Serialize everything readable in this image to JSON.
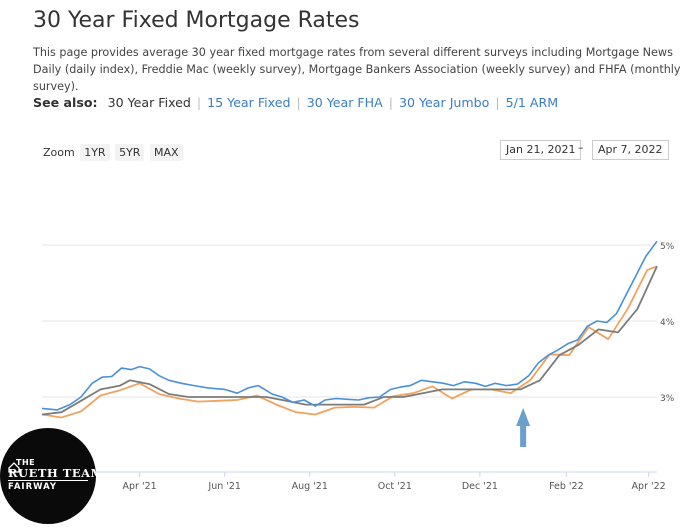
{
  "page": {
    "title": "30 Year Fixed Mortgage Rates",
    "description": "This page provides average 30 year fixed mortgage rates from several different surveys including Mortgage News Daily (daily index), Freddie Mac (weekly survey), Mortgage Bankers Association (weekly survey) and FHFA (monthly survey).",
    "see_also": {
      "label": "See also:",
      "current": "30 Year Fixed",
      "links": [
        "15 Year Fixed",
        "30 Year FHA",
        "30 Year Jumbo",
        "5/1 ARM"
      ]
    }
  },
  "zoom": {
    "label": "Zoom",
    "options": [
      "1YR",
      "5YR",
      "MAX"
    ],
    "from": "Jan 21, 2021",
    "to": "Apr 7, 2022",
    "dash": "–"
  },
  "logo": {
    "line1": "THE",
    "line2": "RUETH TEAM",
    "line3": "FAIRWAY"
  },
  "colors": {
    "mnd": "#4a90d9",
    "gray": "#7b7b7b",
    "orange": "#f0a35e",
    "grid": "#e6e6e6",
    "arrow": "#6a9fd0"
  },
  "chart_data": {
    "type": "line",
    "x_axis": {
      "type": "date",
      "start": "2021-01-21",
      "end": "2022-04-07",
      "tick_labels": [
        "Apr '21",
        "Jun '21",
        "Aug '21",
        "Oct '21",
        "Dec '21",
        "Feb '22",
        "Apr '22"
      ],
      "tick_dates": [
        "2021-04-01",
        "2021-06-01",
        "2021-08-01",
        "2021-10-01",
        "2021-12-01",
        "2022-02-01",
        "2022-04-01"
      ]
    },
    "y_axis": {
      "range": [
        2,
        5.05
      ],
      "tick_values": [
        3,
        4,
        5
      ],
      "tick_labels": [
        "3%",
        "4%",
        "5%"
      ],
      "position": "right"
    },
    "grid": true,
    "annotation": {
      "type": "arrow",
      "date": "2022-01-01",
      "direction": "up"
    },
    "series": [
      {
        "color_key": "mnd",
        "points": [
          [
            "2021-01-21",
            2.85
          ],
          [
            "2021-02-01",
            2.83
          ],
          [
            "2021-02-10",
            2.9
          ],
          [
            "2021-02-18",
            3.0
          ],
          [
            "2021-02-26",
            3.18
          ],
          [
            "2021-03-05",
            3.26
          ],
          [
            "2021-03-12",
            3.27
          ],
          [
            "2021-03-19",
            3.38
          ],
          [
            "2021-03-26",
            3.36
          ],
          [
            "2021-04-01",
            3.4
          ],
          [
            "2021-04-08",
            3.37
          ],
          [
            "2021-04-15",
            3.28
          ],
          [
            "2021-04-22",
            3.22
          ],
          [
            "2021-05-01",
            3.18
          ],
          [
            "2021-05-10",
            3.15
          ],
          [
            "2021-05-20",
            3.12
          ],
          [
            "2021-06-01",
            3.1
          ],
          [
            "2021-06-10",
            3.05
          ],
          [
            "2021-06-18",
            3.12
          ],
          [
            "2021-06-25",
            3.15
          ],
          [
            "2021-07-05",
            3.04
          ],
          [
            "2021-07-12",
            3.0
          ],
          [
            "2021-07-20",
            2.93
          ],
          [
            "2021-07-28",
            2.96
          ],
          [
            "2021-08-05",
            2.88
          ],
          [
            "2021-08-12",
            2.96
          ],
          [
            "2021-08-20",
            2.98
          ],
          [
            "2021-08-28",
            2.97
          ],
          [
            "2021-09-05",
            2.96
          ],
          [
            "2021-09-12",
            2.99
          ],
          [
            "2021-09-20",
            3.0
          ],
          [
            "2021-09-28",
            3.1
          ],
          [
            "2021-10-05",
            3.13
          ],
          [
            "2021-10-12",
            3.15
          ],
          [
            "2021-10-20",
            3.22
          ],
          [
            "2021-10-28",
            3.2
          ],
          [
            "2021-11-05",
            3.18
          ],
          [
            "2021-11-12",
            3.15
          ],
          [
            "2021-11-20",
            3.2
          ],
          [
            "2021-11-28",
            3.18
          ],
          [
            "2021-12-05",
            3.14
          ],
          [
            "2021-12-12",
            3.18
          ],
          [
            "2021-12-20",
            3.15
          ],
          [
            "2021-12-28",
            3.17
          ],
          [
            "2022-01-05",
            3.28
          ],
          [
            "2022-01-12",
            3.45
          ],
          [
            "2022-01-19",
            3.55
          ],
          [
            "2022-01-26",
            3.62
          ],
          [
            "2022-02-02",
            3.7
          ],
          [
            "2022-02-09",
            3.75
          ],
          [
            "2022-02-16",
            3.93
          ],
          [
            "2022-02-23",
            4.0
          ],
          [
            "2022-03-02",
            3.98
          ],
          [
            "2022-03-09",
            4.1
          ],
          [
            "2022-03-16",
            4.35
          ],
          [
            "2022-03-23",
            4.6
          ],
          [
            "2022-03-30",
            4.85
          ],
          [
            "2022-04-07",
            5.05
          ]
        ]
      },
      {
        "color_key": "gray",
        "points": [
          [
            "2021-01-21",
            2.77
          ],
          [
            "2021-02-04",
            2.8
          ],
          [
            "2021-02-18",
            2.95
          ],
          [
            "2021-03-04",
            3.1
          ],
          [
            "2021-03-18",
            3.15
          ],
          [
            "2021-03-25",
            3.22
          ],
          [
            "2021-04-08",
            3.17
          ],
          [
            "2021-04-22",
            3.04
          ],
          [
            "2021-05-06",
            3.0
          ],
          [
            "2021-05-20",
            3.0
          ],
          [
            "2021-06-03",
            3.0
          ],
          [
            "2021-06-17",
            3.0
          ],
          [
            "2021-07-01",
            3.0
          ],
          [
            "2021-07-15",
            2.95
          ],
          [
            "2021-07-29",
            2.9
          ],
          [
            "2021-08-12",
            2.9
          ],
          [
            "2021-08-26",
            2.9
          ],
          [
            "2021-09-09",
            2.9
          ],
          [
            "2021-09-23",
            3.0
          ],
          [
            "2021-10-07",
            3.0
          ],
          [
            "2021-10-21",
            3.05
          ],
          [
            "2021-11-04",
            3.1
          ],
          [
            "2021-11-18",
            3.1
          ],
          [
            "2021-12-02",
            3.1
          ],
          [
            "2021-12-16",
            3.1
          ],
          [
            "2021-12-30",
            3.1
          ],
          [
            "2022-01-13",
            3.22
          ],
          [
            "2022-01-27",
            3.55
          ],
          [
            "2022-02-10",
            3.69
          ],
          [
            "2022-02-24",
            3.89
          ],
          [
            "2022-03-10",
            3.85
          ],
          [
            "2022-03-24",
            4.16
          ],
          [
            "2022-04-07",
            4.72
          ]
        ]
      },
      {
        "color_key": "orange",
        "points": [
          [
            "2021-01-21",
            2.77
          ],
          [
            "2021-02-04",
            2.73
          ],
          [
            "2021-02-18",
            2.81
          ],
          [
            "2021-03-04",
            3.02
          ],
          [
            "2021-03-18",
            3.09
          ],
          [
            "2021-04-01",
            3.18
          ],
          [
            "2021-04-15",
            3.04
          ],
          [
            "2021-04-29",
            2.98
          ],
          [
            "2021-05-13",
            2.94
          ],
          [
            "2021-05-27",
            2.95
          ],
          [
            "2021-06-10",
            2.96
          ],
          [
            "2021-06-24",
            3.02
          ],
          [
            "2021-07-08",
            2.9
          ],
          [
            "2021-07-22",
            2.8
          ],
          [
            "2021-08-05",
            2.77
          ],
          [
            "2021-08-19",
            2.86
          ],
          [
            "2021-09-02",
            2.87
          ],
          [
            "2021-09-16",
            2.86
          ],
          [
            "2021-09-30",
            3.01
          ],
          [
            "2021-10-14",
            3.05
          ],
          [
            "2021-10-28",
            3.14
          ],
          [
            "2021-11-11",
            2.98
          ],
          [
            "2021-11-25",
            3.1
          ],
          [
            "2021-12-09",
            3.1
          ],
          [
            "2021-12-23",
            3.05
          ],
          [
            "2022-01-06",
            3.22
          ],
          [
            "2022-01-20",
            3.56
          ],
          [
            "2022-02-03",
            3.55
          ],
          [
            "2022-02-17",
            3.92
          ],
          [
            "2022-03-03",
            3.76
          ],
          [
            "2022-03-17",
            4.16
          ],
          [
            "2022-03-31",
            4.67
          ],
          [
            "2022-04-07",
            4.72
          ]
        ]
      }
    ]
  }
}
